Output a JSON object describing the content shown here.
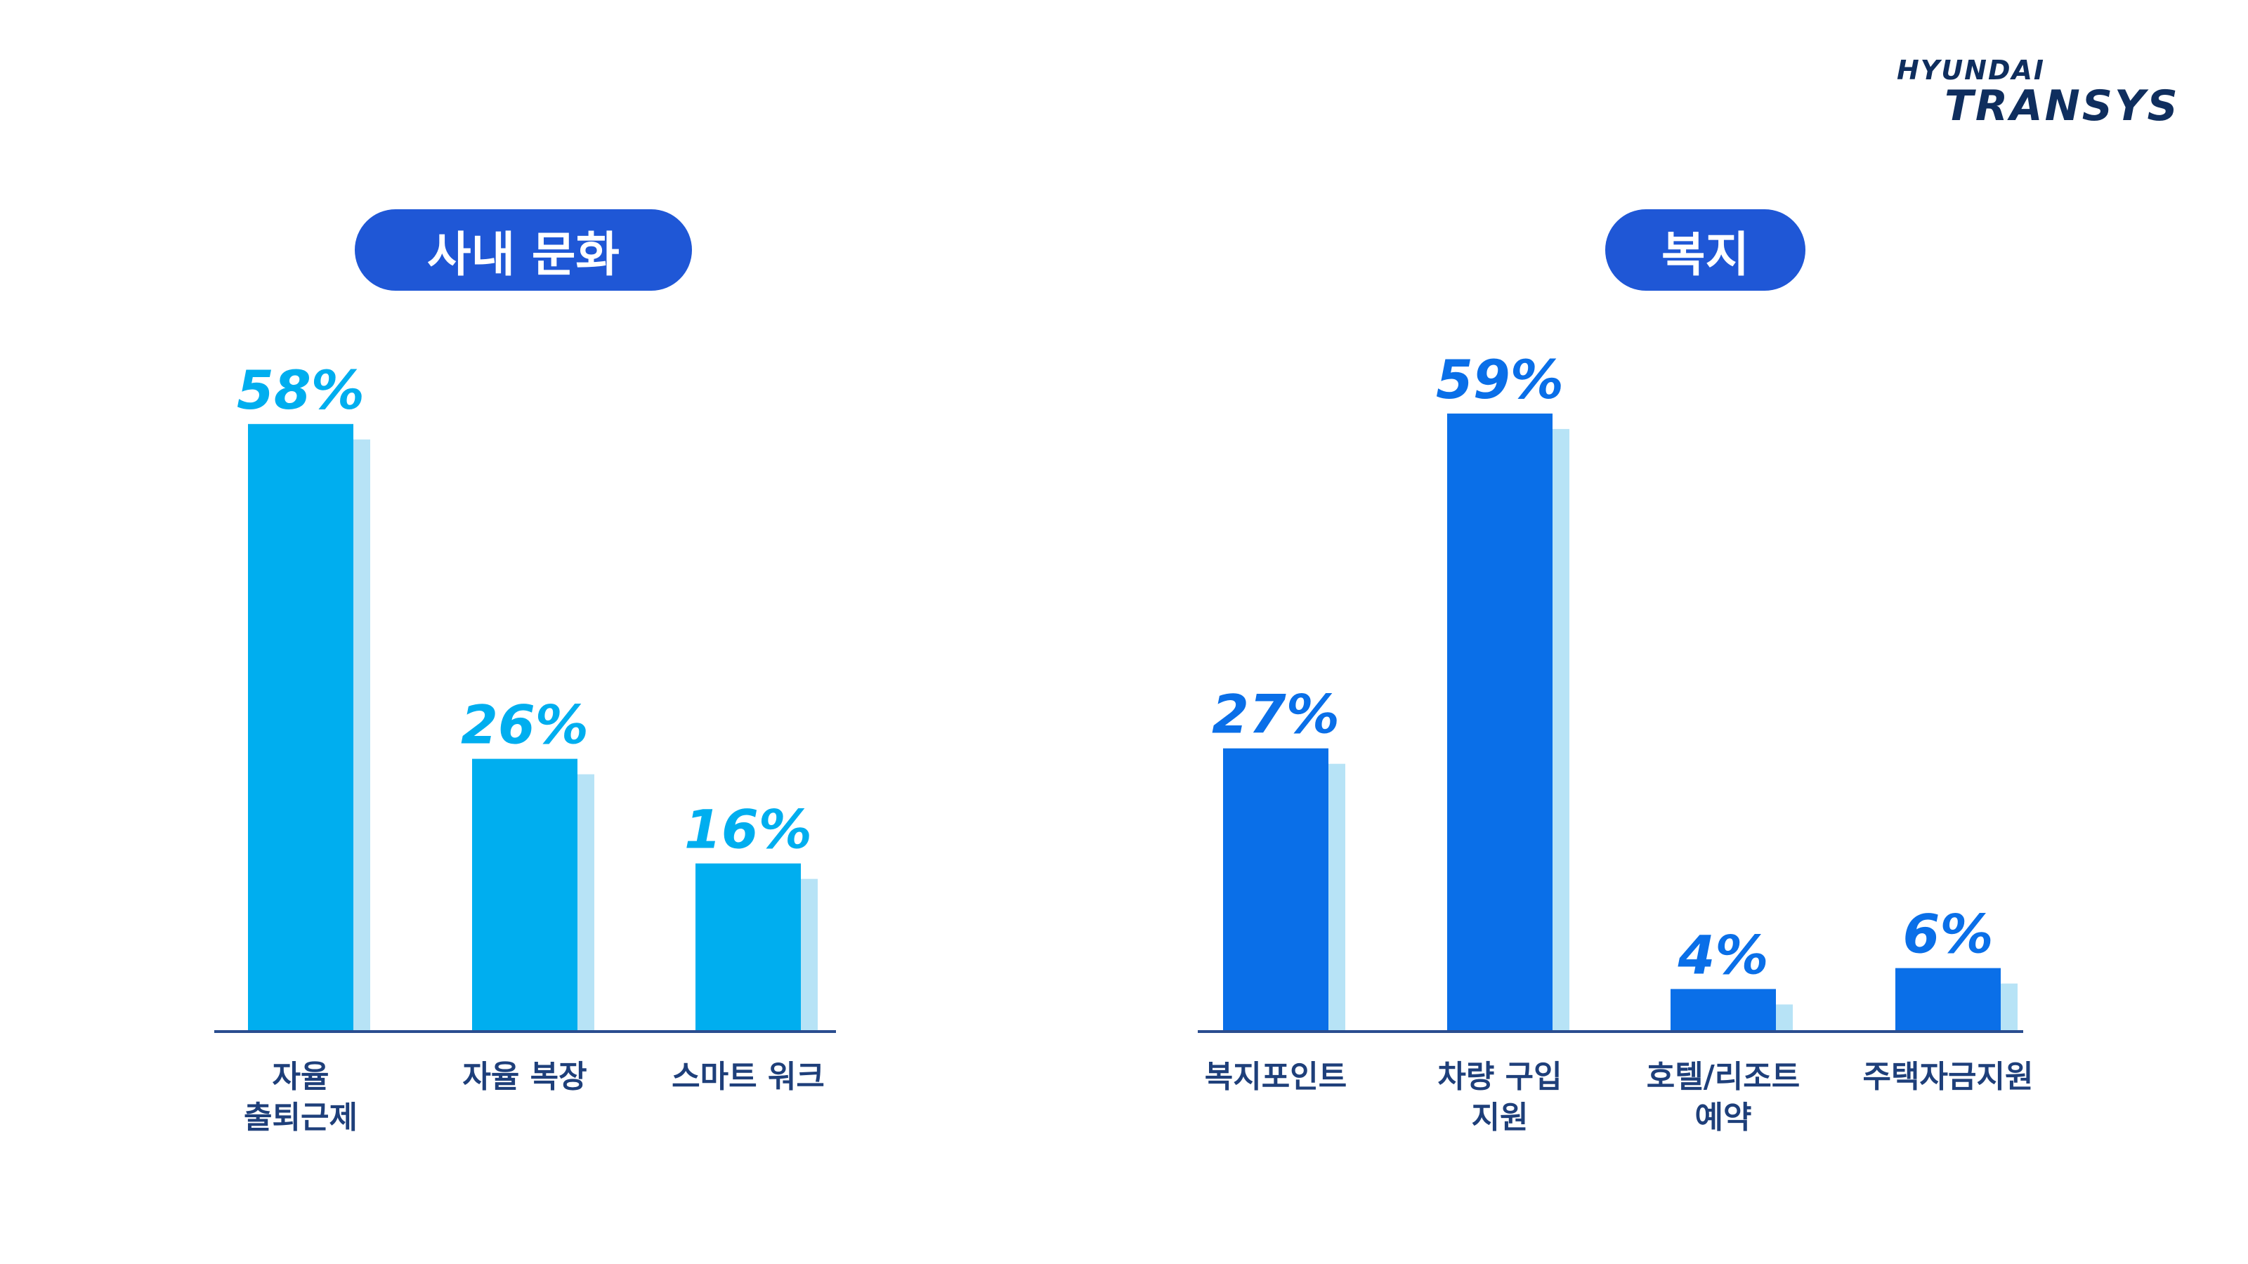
{
  "logo": {
    "line1": "HYUNDAI",
    "line2": "TRANSYS"
  },
  "colors": {
    "pill": "#1f57d6",
    "culture_bar": "#00aeef",
    "welfare_bar": "#0a6fe8",
    "shadow": "#b7e3f6",
    "axis": "#2a4d8f",
    "label": "#1e3f7a"
  },
  "chart_data": [
    {
      "type": "bar",
      "title": "사내 문화",
      "categories": [
        "자율\n출퇴근제",
        "자율 복장",
        "스마트 워크"
      ],
      "values": [
        58,
        26,
        16
      ],
      "value_labels": [
        "58%",
        "26%",
        "16%"
      ],
      "ylim": [
        0,
        60
      ],
      "grid": false
    },
    {
      "type": "bar",
      "title": "복지",
      "categories": [
        "복지포인트",
        "차량 구입\n지원",
        "호텔/리조트\n예약",
        "주택자금지원"
      ],
      "values": [
        27,
        59,
        4,
        6
      ],
      "value_labels": [
        "27%",
        "59%",
        "4%",
        "6%"
      ],
      "ylim": [
        0,
        60
      ],
      "grid": false
    }
  ]
}
